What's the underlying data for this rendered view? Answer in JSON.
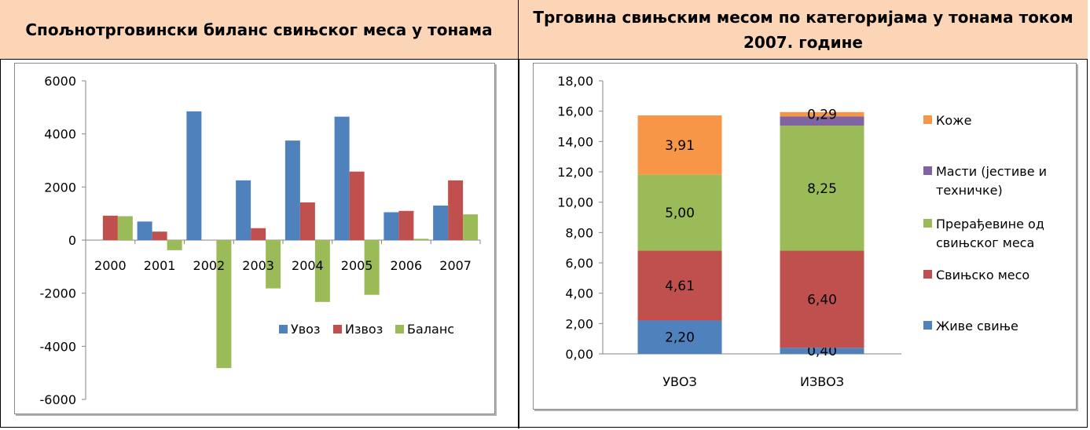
{
  "headers": {
    "left": "Спољнотрговински биланс свињског меса у тонама",
    "right": "Трговина свињским месом по категоријама у тонама током 2007. године"
  },
  "chart_data": [
    {
      "type": "bar",
      "categories": [
        "2000",
        "2001",
        "2002",
        "2003",
        "2004",
        "2005",
        "2006",
        "2007"
      ],
      "series": [
        {
          "name": "Увоз",
          "color": "#4f81bd",
          "values": [
            0,
            700,
            4850,
            2250,
            3750,
            4650,
            1050,
            1300
          ]
        },
        {
          "name": "Извоз",
          "color": "#c0504d",
          "values": [
            920,
            320,
            0,
            450,
            1420,
            2580,
            1100,
            2250
          ]
        },
        {
          "name": "Баланс",
          "color": "#9bbb59",
          "values": [
            900,
            -380,
            -4820,
            -1820,
            -2330,
            -2060,
            50,
            970
          ]
        }
      ],
      "yticks": [
        "6000",
        "4000",
        "2000",
        "0",
        "-2000",
        "-4000",
        "-6000"
      ],
      "ylim": [
        -6000,
        6000
      ],
      "legend": "bottom-right",
      "grid": false
    },
    {
      "type": "stacked-bar",
      "categories": [
        "УВОЗ",
        "ИЗВОЗ"
      ],
      "series": [
        {
          "name": "Живе свиње",
          "color": "#4f81bd",
          "values": [
            2.2,
            0.4
          ],
          "labels": [
            "2,20",
            "0,40"
          ]
        },
        {
          "name": "Свињско месо",
          "color": "#c0504d",
          "values": [
            4.61,
            6.4
          ],
          "labels": [
            "4,61",
            "6,40"
          ]
        },
        {
          "name": "Прерађевине од свињског меса",
          "color": "#9bbb59",
          "values": [
            5.0,
            8.25
          ],
          "labels": [
            "5,00",
            "8,25"
          ]
        },
        {
          "name": "Масти (јестиве и техничке)",
          "color": "#8064a2",
          "values": [
            0,
            0.6
          ],
          "labels": [
            "",
            ""
          ]
        },
        {
          "name": "Коже",
          "color": "#f79646",
          "values": [
            3.91,
            0.29
          ],
          "labels": [
            "3,91",
            "0,29"
          ]
        }
      ],
      "legend_lines": [
        [
          "Коже"
        ],
        [
          "Масти (јестиве и",
          "техничке)"
        ],
        [
          "Прерађевине од",
          "свињског меса"
        ],
        [
          "Свињско месо"
        ],
        [
          "Живе свиње"
        ]
      ],
      "yticks": [
        "18,00",
        "16,00",
        "14,00",
        "12,00",
        "10,00",
        "8,00",
        "6,00",
        "4,00",
        "2,00",
        "0,00"
      ],
      "ylim": [
        0,
        18
      ],
      "legend": "right",
      "grid": false
    }
  ]
}
